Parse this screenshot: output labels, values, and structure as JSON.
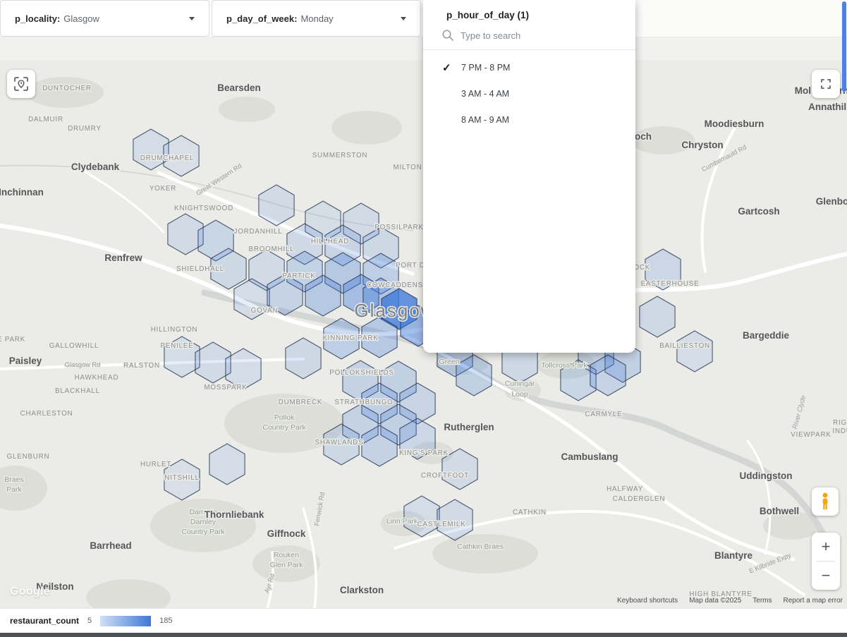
{
  "filters": {
    "locality": {
      "label": "p_locality:",
      "value": "Glasgow"
    },
    "day_of_week": {
      "label": "p_day_of_week:",
      "value": "Monday"
    }
  },
  "dropdown": {
    "title": "p_hour_of_day (1)",
    "search_placeholder": "Type to search",
    "check_glyph": "✓",
    "options": [
      {
        "label": "7 PM - 8 PM",
        "selected": true
      },
      {
        "label": "3 AM - 4 AM",
        "selected": false
      },
      {
        "label": "8 AM - 9 AM",
        "selected": false
      }
    ]
  },
  "legend": {
    "label": "restaurant_count",
    "min": "5",
    "max": "185",
    "gradient": [
      "#cfe0f7",
      "#3d78d8"
    ]
  },
  "controls": {
    "zoom_in": "+",
    "zoom_out": "−"
  },
  "map": {
    "logo": "Google",
    "attribution": [
      "Keyboard shortcuts",
      "Map data ©2025",
      "Terms",
      "Report a map error"
    ],
    "hex_fill": "#3d78d8",
    "hex_stroke": "#22304e",
    "hexes": [
      [
        214,
        127,
        0.13
      ],
      [
        257,
        136,
        0.11
      ],
      [
        392,
        206,
        0.15
      ],
      [
        263,
        247,
        0.15
      ],
      [
        306,
        256,
        0.19
      ],
      [
        324,
        296,
        0.17
      ],
      [
        458,
        229,
        0.12
      ],
      [
        512,
        232,
        0.14
      ],
      [
        432,
        261,
        0.16
      ],
      [
        486,
        263,
        0.2
      ],
      [
        540,
        266,
        0.17
      ],
      [
        378,
        298,
        0.15
      ],
      [
        432,
        300,
        0.23
      ],
      [
        486,
        302,
        0.3
      ],
      [
        540,
        303,
        0.26
      ],
      [
        357,
        339,
        0.13
      ],
      [
        404,
        333,
        0.21
      ],
      [
        458,
        334,
        0.3
      ],
      [
        512,
        333,
        0.4
      ],
      [
        540,
        338,
        0.34
      ],
      [
        566,
        353,
        0.78
      ],
      [
        593,
        377,
        0.48
      ],
      [
        484,
        395,
        0.26
      ],
      [
        538,
        393,
        0.3
      ],
      [
        430,
        423,
        0.17
      ],
      [
        511,
        455,
        0.22
      ],
      [
        565,
        456,
        0.24
      ],
      [
        538,
        487,
        0.24
      ],
      [
        592,
        487,
        0.2
      ],
      [
        511,
        517,
        0.22
      ],
      [
        565,
        517,
        0.24
      ],
      [
        484,
        545,
        0.17
      ],
      [
        538,
        547,
        0.22
      ],
      [
        592,
        537,
        0.18
      ],
      [
        645,
        420,
        0.26
      ],
      [
        672,
        447,
        0.24
      ],
      [
        737,
        429,
        0.17
      ],
      [
        845,
        417,
        0.2
      ],
      [
        883,
        428,
        0.24
      ],
      [
        820,
        454,
        0.19
      ],
      [
        862,
        447,
        0.21
      ],
      [
        940,
        297,
        0.18
      ],
      [
        932,
        364,
        0.16
      ],
      [
        985,
        413,
        0.13
      ],
      [
        258,
        421,
        0.13
      ],
      [
        302,
        429,
        0.15
      ],
      [
        345,
        438,
        0.13
      ],
      [
        322,
        573,
        0.13
      ],
      [
        258,
        595,
        0.11
      ],
      [
        652,
        580,
        0.15
      ],
      [
        598,
        647,
        0.13
      ],
      [
        645,
        652,
        0.15
      ]
    ],
    "labels": [
      [
        "DUNTOCHER",
        95,
        43,
        "hood"
      ],
      [
        "Bearsden",
        339,
        44,
        "town"
      ],
      [
        "Mollinsburn",
        1165,
        48,
        "town"
      ],
      [
        "Annathill",
        1175,
        71,
        "town"
      ],
      [
        "DALMUIR",
        65,
        87,
        "hood"
      ],
      [
        "DRUMRY",
        120,
        100,
        "hood"
      ],
      [
        "Moodiesburn",
        1041,
        95,
        "town"
      ],
      [
        "Kirkintilloch",
        885,
        113,
        "town"
      ],
      [
        "Chryston",
        996,
        125,
        "town"
      ],
      [
        "DRUMCHAPEL",
        237,
        142,
        "hood"
      ],
      [
        "SUMMERSTON",
        482,
        138,
        "hood"
      ],
      [
        "MILTON",
        578,
        155,
        "hood"
      ],
      [
        "Clydebank",
        135,
        156,
        "town"
      ],
      [
        "Cumbernauld Rd",
        1028,
        142,
        "road",
        -28
      ],
      [
        "Great Western Rd",
        312,
        172,
        "road",
        -33
      ],
      [
        "YOKER",
        231,
        185,
        "hood"
      ],
      [
        "Inchinnan",
        30,
        192,
        "town"
      ],
      [
        "KNIGHTSWOOD",
        289,
        213,
        "hood"
      ],
      [
        "Gartcosh",
        1076,
        219,
        "town"
      ],
      [
        "Glenboig",
        1186,
        205,
        "town"
      ],
      [
        "JORDANHILL",
        366,
        246,
        "hood"
      ],
      [
        "POSSILPARK",
        566,
        240,
        "hood"
      ],
      [
        "BROOMHILL",
        385,
        271,
        "hood"
      ],
      [
        "HILLHEAD",
        468,
        260,
        "hood"
      ],
      [
        "Renfrew",
        175,
        285,
        "town"
      ],
      [
        "SHIELDHALL",
        284,
        299,
        "hood"
      ],
      [
        "PARTICK",
        424,
        309,
        "hood"
      ],
      [
        "PORT DUNDAS",
        601,
        294,
        "hood"
      ],
      [
        "COWCADDENS",
        560,
        322,
        "hood"
      ],
      [
        "GARTHAMLOCK",
        880,
        297,
        "hood"
      ],
      [
        "EASTERHOUSE",
        950,
        320,
        "hood"
      ],
      [
        "GOVAN",
        375,
        358,
        "hood"
      ],
      [
        "Glasgow",
        560,
        364,
        "city"
      ],
      [
        "HILLINGTON",
        247,
        385,
        "hood"
      ],
      [
        "GALLOWHILL",
        105,
        408,
        "hood"
      ],
      [
        "KINNING PARK",
        497,
        397,
        "hood"
      ],
      [
        "PENILEE",
        251,
        408,
        "hood"
      ],
      [
        "BAILLIESTON",
        971,
        408,
        "hood"
      ],
      [
        "Bargeddie",
        1086,
        395,
        "town"
      ],
      [
        "E PARK",
        16,
        399,
        "hood"
      ],
      [
        "Paisley",
        36,
        431,
        "town"
      ],
      [
        "Glasgow Rd",
        117,
        435,
        "road"
      ],
      [
        "RALSTON",
        201,
        436,
        "hood"
      ],
      [
        "Green",
        637,
        431,
        "park"
      ],
      [
        "Tollcross Park",
        800,
        436,
        "park"
      ],
      [
        "HAWKHEAD",
        137,
        453,
        "hood"
      ],
      [
        "POLLOKSHIELDS",
        513,
        446,
        "hood"
      ],
      [
        "BLACKHALL",
        110,
        472,
        "hood"
      ],
      [
        "MOSSPARK",
        320,
        467,
        "hood"
      ],
      [
        "Cuningar",
        737,
        462,
        "park"
      ],
      [
        "Loop",
        737,
        477,
        "park"
      ],
      [
        "River Clyde",
        1136,
        500,
        "water",
        -75
      ],
      [
        "CHARLESTON",
        66,
        504,
        "hood"
      ],
      [
        "DUMBRECK",
        426,
        488,
        "hood"
      ],
      [
        "STRATHBUNGO",
        516,
        488,
        "hood"
      ],
      [
        "CARMYLE",
        856,
        505,
        "hood"
      ],
      [
        "Pollok",
        403,
        510,
        "park"
      ],
      [
        "Country Park",
        403,
        524,
        "park"
      ],
      [
        "Rutherglen",
        665,
        525,
        "town"
      ],
      [
        "RIG",
        1191,
        517,
        "hood"
      ],
      [
        "INDU",
        1194,
        529,
        "hood"
      ],
      [
        "VIEWPARK",
        1150,
        534,
        "hood"
      ],
      [
        "SHAWLANDS",
        481,
        545,
        "hood"
      ],
      [
        "KING'S PARK",
        601,
        560,
        "hood"
      ],
      [
        "GLENBURN",
        40,
        565,
        "hood"
      ],
      [
        "Cambuslang",
        836,
        567,
        "town"
      ],
      [
        "HURLET",
        221,
        576,
        "hood"
      ],
      [
        "NITSHILL",
        258,
        595,
        "hood"
      ],
      [
        "CROFTFOOT",
        631,
        592,
        "hood"
      ],
      [
        "Uddingston",
        1086,
        594,
        "town"
      ],
      [
        "Braes",
        20,
        598,
        "park"
      ],
      [
        "Park",
        20,
        612,
        "park"
      ],
      [
        "HALFWAY",
        886,
        611,
        "hood"
      ],
      [
        "CALDERGLEN",
        906,
        625,
        "hood"
      ],
      [
        "Dams to",
        288,
        644,
        "park"
      ],
      [
        "Darnley",
        288,
        658,
        "park"
      ],
      [
        "Country Park",
        288,
        672,
        "park"
      ],
      [
        "Thornliebank",
        332,
        649,
        "town"
      ],
      [
        "CATHKIN",
        751,
        644,
        "hood"
      ],
      [
        "Bothwell",
        1105,
        644,
        "town"
      ],
      [
        "Fenwick Rd",
        456,
        637,
        "road",
        -80
      ],
      [
        "Linn Park",
        570,
        657,
        "park"
      ],
      [
        "CASTLEMILK",
        626,
        661,
        "hood"
      ],
      [
        "Giffnock",
        406,
        676,
        "town"
      ],
      [
        "Barrhead",
        157,
        693,
        "town"
      ],
      [
        "Cathkin Braes",
        681,
        693,
        "park"
      ],
      [
        "Rouken",
        406,
        705,
        "park"
      ],
      [
        "Glen Park",
        406,
        719,
        "park"
      ],
      [
        "Blantyre",
        1040,
        707,
        "town"
      ],
      [
        "E Kilbride Expy",
        1093,
        716,
        "road",
        -22
      ],
      [
        "Ayr Rd",
        385,
        743,
        "road",
        -72
      ],
      [
        "Neilston",
        78,
        751,
        "town"
      ],
      [
        "Clarkston",
        513,
        756,
        "town"
      ],
      [
        "HIGH BLANTYRE",
        1022,
        760,
        "hood"
      ]
    ],
    "parks": [
      [
        403,
        515,
        85,
        42
      ],
      [
        288,
        660,
        75,
        38
      ],
      [
        406,
        714,
        48,
        26
      ],
      [
        572,
        657,
        32,
        18
      ],
      [
        688,
        700,
        75,
        28
      ],
      [
        803,
        432,
        42,
        20
      ],
      [
        741,
        468,
        26,
        16
      ],
      [
        22,
        607,
        45,
        32
      ],
      [
        613,
        557,
        30,
        16
      ],
      [
        655,
        430,
        38,
        16
      ],
      [
        520,
        96,
        50,
        24
      ],
      [
        940,
        114,
        45,
        20
      ],
      [
        92,
        46,
        55,
        22
      ],
      [
        1122,
        660,
        40,
        20
      ],
      [
        182,
        762,
        60,
        26
      ],
      [
        350,
        70,
        40,
        18
      ]
    ],
    "roads": [
      [
        "M 290,330 C 400,358 480,372 560,392 C 630,410 670,440 710,462 C 790,505 880,490 950,525 C 1030,562 1090,572 1135,625 C 1160,655 1172,680 1182,705",
        9,
        "#d3d6d5"
      ],
      [
        "M 0,150 C 150,146 270,168 390,204 C 470,228 525,236 585,242",
        1.8,
        "#d6d6d2"
      ],
      [
        "M 225,160 C 330,205 450,258 585,303",
        5,
        "#ffffff"
      ],
      [
        "M 0,235 C 140,255 260,300 350,345 C 450,392 530,392 575,386 C 650,375 720,342 800,332 C 900,320 980,334 1060,312 C 1110,298 1160,284 1201,275",
        6,
        "#ffffff"
      ],
      [
        "M 0,438 C 120,434 260,428 430,424",
        4,
        "#ffffff"
      ],
      [
        "M 575,392 C 640,420 680,448 720,468 C 800,506 860,558 920,608 C 980,656 1040,688 1125,708",
        5,
        "#ffffff"
      ],
      [
        "M 560,692 C 700,646 820,626 920,650 C 1010,672 1080,718 1140,758",
        4,
        "#ffffff"
      ],
      [
        "M 1042,96 C 1006,160 986,225 1000,300",
        4,
        "#ffffff"
      ],
      [
        "M 430,636 C 446,688 452,730 446,777",
        3.5,
        "#ffffff"
      ],
      [
        "M 386,698 C 389,728 385,758 379,777",
        3.5,
        "#ffffff"
      ],
      [
        "M 120,158 C 165,185 205,215 232,244",
        3,
        "#ffffff"
      ],
      [
        "M 1060,540 C 1090,580 1100,640 1085,700",
        3,
        "#ffffff"
      ]
    ]
  }
}
